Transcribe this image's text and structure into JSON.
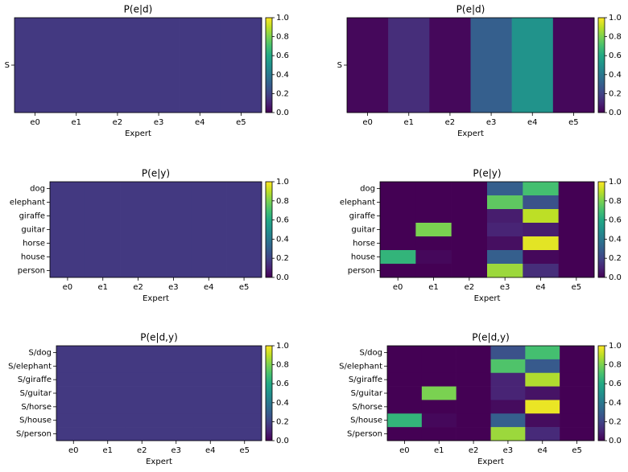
{
  "chart_data": [
    {
      "type": "heatmap",
      "title": "P(e|d)",
      "xlabel": "Expert",
      "colormap": "viridis",
      "x": [
        "e0",
        "e1",
        "e2",
        "e3",
        "e4",
        "e5"
      ],
      "y": [
        "S"
      ],
      "values": [
        [
          0.167,
          0.167,
          0.167,
          0.167,
          0.167,
          0.167
        ]
      ],
      "clim": [
        0,
        1
      ],
      "cticks": [
        {
          "value": 0,
          "label": "0.0"
        },
        {
          "value": 0.2,
          "label": "0.2"
        },
        {
          "value": 0.4,
          "label": "0.4"
        },
        {
          "value": 0.6,
          "label": "0.6"
        },
        {
          "value": 0.8,
          "label": "0.8"
        },
        {
          "value": 1,
          "label": "1.0"
        }
      ]
    },
    {
      "type": "heatmap",
      "title": "P(e|d)",
      "xlabel": "Expert",
      "colormap": "viridis",
      "x": [
        "e0",
        "e1",
        "e2",
        "e3",
        "e4",
        "e5"
      ],
      "y": [
        "S"
      ],
      "values": [
        [
          0.02,
          0.13,
          0.02,
          0.3,
          0.51,
          0.02
        ]
      ],
      "clim": [
        0,
        1
      ],
      "cticks": [
        {
          "value": 0,
          "label": "0.0"
        },
        {
          "value": 0.2,
          "label": "0.2"
        },
        {
          "value": 0.4,
          "label": "0.4"
        },
        {
          "value": 0.6,
          "label": "0.6"
        },
        {
          "value": 0.8,
          "label": "0.8"
        },
        {
          "value": 1,
          "label": "1.0"
        }
      ]
    },
    {
      "type": "heatmap",
      "title": "P(e|y)",
      "xlabel": "Expert",
      "colormap": "viridis",
      "x": [
        "e0",
        "e1",
        "e2",
        "e3",
        "e4",
        "e5"
      ],
      "y": [
        "dog",
        "elephant",
        "giraffe",
        "guitar",
        "horse",
        "house",
        "person"
      ],
      "values": [
        [
          0.167,
          0.167,
          0.167,
          0.167,
          0.167,
          0.167
        ],
        [
          0.167,
          0.167,
          0.167,
          0.167,
          0.167,
          0.167
        ],
        [
          0.167,
          0.167,
          0.167,
          0.167,
          0.167,
          0.167
        ],
        [
          0.167,
          0.167,
          0.167,
          0.167,
          0.167,
          0.167
        ],
        [
          0.167,
          0.167,
          0.167,
          0.167,
          0.167,
          0.167
        ],
        [
          0.167,
          0.167,
          0.167,
          0.167,
          0.167,
          0.167
        ],
        [
          0.167,
          0.167,
          0.167,
          0.167,
          0.167,
          0.167
        ]
      ],
      "clim": [
        0,
        1
      ],
      "cticks": [
        {
          "value": 0,
          "label": "0.0"
        },
        {
          "value": 0.2,
          "label": "0.2"
        },
        {
          "value": 0.4,
          "label": "0.4"
        },
        {
          "value": 0.6,
          "label": "0.6"
        },
        {
          "value": 0.8,
          "label": "0.8"
        },
        {
          "value": 1,
          "label": "1.0"
        }
      ]
    },
    {
      "type": "heatmap",
      "title": "P(e|y)",
      "xlabel": "Expert",
      "colormap": "viridis",
      "x": [
        "e0",
        "e1",
        "e2",
        "e3",
        "e4",
        "e5"
      ],
      "y": [
        "dog",
        "elephant",
        "giraffe",
        "guitar",
        "horse",
        "house",
        "person"
      ],
      "values": [
        [
          0.0,
          0.0,
          0.0,
          0.3,
          0.7,
          0.0
        ],
        [
          0.0,
          0.0,
          0.0,
          0.75,
          0.25,
          0.0
        ],
        [
          0.0,
          0.0,
          0.0,
          0.08,
          0.9,
          0.0
        ],
        [
          0.0,
          0.8,
          0.0,
          0.1,
          0.08,
          0.0
        ],
        [
          0.0,
          0.0,
          0.0,
          0.04,
          0.96,
          0.0
        ],
        [
          0.65,
          0.02,
          0.0,
          0.3,
          0.02,
          0.0
        ],
        [
          0.0,
          0.0,
          0.0,
          0.85,
          0.13,
          0.0
        ]
      ],
      "clim": [
        0,
        1
      ],
      "cticks": [
        {
          "value": 0,
          "label": "0.0"
        },
        {
          "value": 0.2,
          "label": "0.2"
        },
        {
          "value": 0.4,
          "label": "0.4"
        },
        {
          "value": 0.6,
          "label": "0.6"
        },
        {
          "value": 0.8,
          "label": "0.8"
        },
        {
          "value": 1,
          "label": "1.0"
        }
      ]
    },
    {
      "type": "heatmap",
      "title": "P(e|d,y)",
      "xlabel": "Expert",
      "colormap": "viridis",
      "x": [
        "e0",
        "e1",
        "e2",
        "e3",
        "e4",
        "e5"
      ],
      "y": [
        "S/dog",
        "S/elephant",
        "S/giraffe",
        "S/guitar",
        "S/horse",
        "S/house",
        "S/person"
      ],
      "values": [
        [
          0.167,
          0.167,
          0.167,
          0.167,
          0.167,
          0.167
        ],
        [
          0.167,
          0.167,
          0.167,
          0.167,
          0.167,
          0.167
        ],
        [
          0.167,
          0.167,
          0.167,
          0.167,
          0.167,
          0.167
        ],
        [
          0.167,
          0.167,
          0.167,
          0.167,
          0.167,
          0.167
        ],
        [
          0.167,
          0.167,
          0.167,
          0.167,
          0.167,
          0.167
        ],
        [
          0.167,
          0.167,
          0.167,
          0.167,
          0.167,
          0.167
        ],
        [
          0.167,
          0.167,
          0.167,
          0.167,
          0.167,
          0.167
        ]
      ],
      "clim": [
        0,
        1
      ],
      "cticks": [
        {
          "value": 0,
          "label": "0.0"
        },
        {
          "value": 0.2,
          "label": "0.2"
        },
        {
          "value": 0.4,
          "label": "0.4"
        },
        {
          "value": 0.6,
          "label": "0.6"
        },
        {
          "value": 0.8,
          "label": "0.8"
        },
        {
          "value": 1,
          "label": "1.0"
        }
      ]
    },
    {
      "type": "heatmap",
      "title": "P(e|d,y)",
      "xlabel": "Expert",
      "colormap": "viridis",
      "x": [
        "e0",
        "e1",
        "e2",
        "e3",
        "e4",
        "e5"
      ],
      "y": [
        "S/dog",
        "S/elephant",
        "S/giraffe",
        "S/guitar",
        "S/horse",
        "S/house",
        "S/person"
      ],
      "values": [
        [
          0.0,
          0.0,
          0.0,
          0.25,
          0.7,
          0.0
        ],
        [
          0.0,
          0.0,
          0.0,
          0.72,
          0.28,
          0.0
        ],
        [
          0.0,
          0.0,
          0.0,
          0.1,
          0.88,
          0.0
        ],
        [
          0.0,
          0.8,
          0.0,
          0.1,
          0.05,
          0.0
        ],
        [
          0.0,
          0.0,
          0.0,
          0.03,
          0.97,
          0.0
        ],
        [
          0.65,
          0.02,
          0.0,
          0.3,
          0.03,
          0.0
        ],
        [
          0.0,
          0.0,
          0.0,
          0.85,
          0.12,
          0.0
        ]
      ],
      "clim": [
        0,
        1
      ],
      "cticks": [
        {
          "value": 0,
          "label": "0.0"
        },
        {
          "value": 0.2,
          "label": "0.2"
        },
        {
          "value": 0.4,
          "label": "0.4"
        },
        {
          "value": 0.6,
          "label": "0.6"
        },
        {
          "value": 0.8,
          "label": "0.8"
        },
        {
          "value": 1,
          "label": "1.0"
        }
      ]
    }
  ]
}
